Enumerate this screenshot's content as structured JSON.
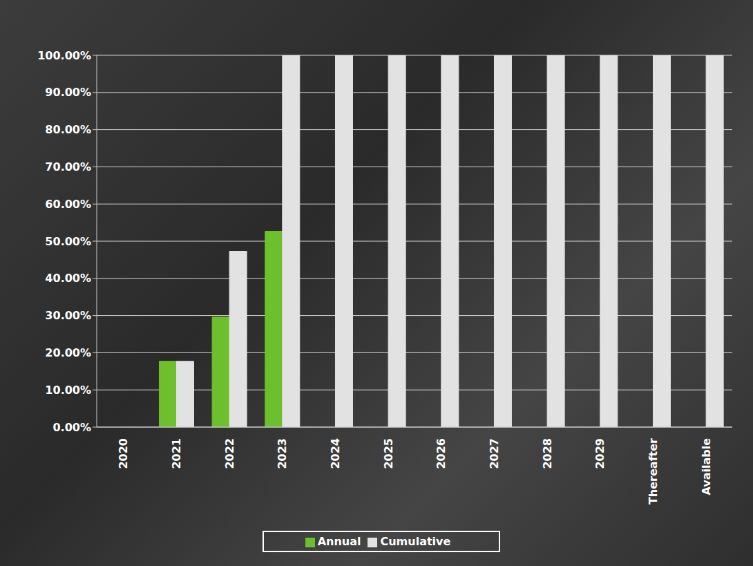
{
  "chart_data": {
    "type": "bar",
    "categories": [
      "2020",
      "2021",
      "2022",
      "2023",
      "2024",
      "2025",
      "2026",
      "2027",
      "2028",
      "2029",
      "Thereafter",
      "Available"
    ],
    "series": [
      {
        "name": "Annual",
        "color": "#6dbf2e",
        "values": [
          0,
          17.7,
          29.6,
          52.7,
          0,
          0,
          0,
          0,
          0,
          0,
          0,
          0
        ]
      },
      {
        "name": "Cumulative",
        "color": "#e2e2e2",
        "values": [
          0,
          17.7,
          47.3,
          100,
          100,
          100,
          100,
          100,
          100,
          100,
          100,
          100
        ]
      }
    ],
    "ylim": [
      0,
      100
    ],
    "yticks": [
      {
        "value": 0,
        "label": "0.00%"
      },
      {
        "value": 10,
        "label": "10.00%"
      },
      {
        "value": 20,
        "label": "20.00%"
      },
      {
        "value": 30,
        "label": "30.00%"
      },
      {
        "value": 40,
        "label": "40.00%"
      },
      {
        "value": 50,
        "label": "50.00%"
      },
      {
        "value": 60,
        "label": "60.00%"
      },
      {
        "value": 70,
        "label": "70.00%"
      },
      {
        "value": 80,
        "label": "80.00%"
      },
      {
        "value": 90,
        "label": "90.00%"
      },
      {
        "value": 100,
        "label": "100.00%"
      }
    ],
    "grid": true,
    "legend": "bottom"
  }
}
